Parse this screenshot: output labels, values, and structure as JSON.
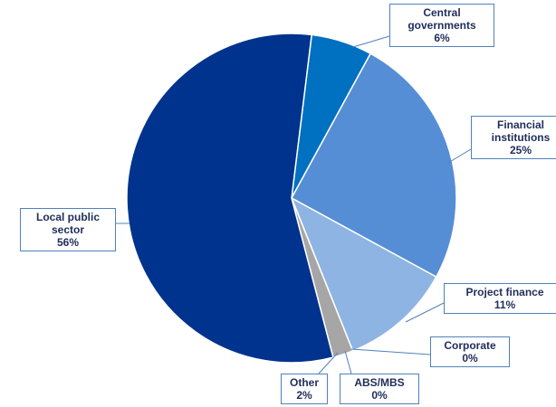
{
  "chart_data": {
    "type": "pie",
    "categories": [
      "Central governments",
      "Financial institutions",
      "Project finance",
      "Corporate",
      "ABS/MBS",
      "Other",
      "Local public sector"
    ],
    "values": [
      6,
      25,
      11,
      0,
      0,
      2,
      56
    ],
    "value_labels": [
      "6%",
      "25%",
      "11%",
      "0%",
      "0%",
      "2%",
      "56%"
    ],
    "colors": [
      "#0070c0",
      "#558ed5",
      "#8eb4e3",
      "#c5d9f1",
      "#dbe5f1",
      "#a6a6a6",
      "#00338d"
    ]
  }
}
